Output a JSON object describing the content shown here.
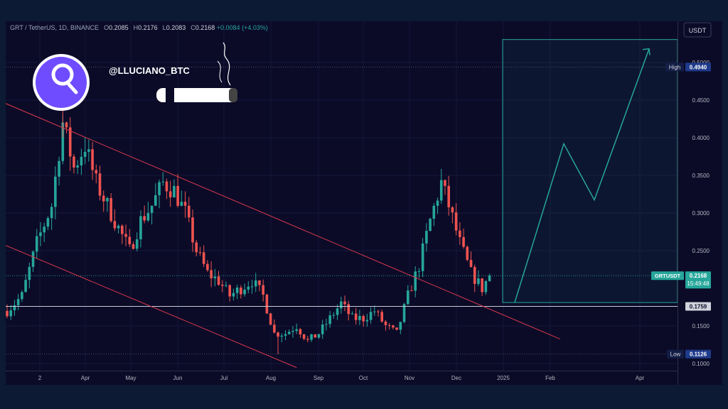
{
  "header": {
    "symbol": "GRT / TetherUS, 1D, BINANCE",
    "o_label": "O",
    "o": "0.2085",
    "h_label": "H",
    "h": "0.2176",
    "l_label": "L",
    "l": "0.2083",
    "c_label": "C",
    "c": "0.2168",
    "change": "+0.0084 (+4.03%)"
  },
  "watermark": {
    "handle": "@LLUCIANO_BTC",
    "logo_icon": "the-graph-logo-icon",
    "cigar_icon": "cigar-icon"
  },
  "currency_badge": "USDT",
  "colors": {
    "up": "#26a69a",
    "down": "#ef5350",
    "channel": "#d9384a",
    "projection": "#26a69a",
    "background": "#0b0b28"
  },
  "chart_data": {
    "type": "candlestick",
    "x_ticks": [
      "2",
      "Apr",
      "May",
      "Jun",
      "Jul",
      "Aug",
      "Sep",
      "Oct",
      "Nov",
      "Dec",
      "2025",
      "Feb",
      "Apr"
    ],
    "y_ticks": [
      "0.5000",
      "0.4500",
      "0.4000",
      "0.3500",
      "0.3000",
      "0.2500",
      "0.1500",
      "0.1000"
    ],
    "ylim": [
      0.09,
      0.54
    ],
    "path": [
      [
        0,
        0.17
      ],
      [
        4,
        0.19
      ],
      [
        8,
        0.26
      ],
      [
        12,
        0.31
      ],
      [
        15,
        0.42
      ],
      [
        18,
        0.36
      ],
      [
        21,
        0.39
      ],
      [
        24,
        0.34
      ],
      [
        27,
        0.31
      ],
      [
        30,
        0.28
      ],
      [
        33,
        0.25
      ],
      [
        36,
        0.29
      ],
      [
        39,
        0.31
      ],
      [
        42,
        0.34
      ],
      [
        45,
        0.33
      ],
      [
        48,
        0.3
      ],
      [
        51,
        0.25
      ],
      [
        54,
        0.22
      ],
      [
        57,
        0.21
      ],
      [
        60,
        0.19
      ],
      [
        63,
        0.2
      ],
      [
        66,
        0.21
      ],
      [
        69,
        0.19
      ],
      [
        72,
        0.14
      ],
      [
        75,
        0.14
      ],
      [
        78,
        0.15
      ],
      [
        81,
        0.13
      ],
      [
        84,
        0.14
      ],
      [
        87,
        0.16
      ],
      [
        90,
        0.18
      ],
      [
        93,
        0.16
      ],
      [
        96,
        0.16
      ],
      [
        99,
        0.17
      ],
      [
        102,
        0.15
      ],
      [
        105,
        0.14
      ],
      [
        108,
        0.19
      ],
      [
        111,
        0.23
      ],
      [
        114,
        0.29
      ],
      [
        117,
        0.34
      ],
      [
        119,
        0.31
      ],
      [
        122,
        0.26
      ],
      [
        125,
        0.22
      ],
      [
        128,
        0.2
      ],
      [
        130,
        0.2168
      ]
    ],
    "wick_extremes": {
      "high": 0.494,
      "low": 0.1126
    },
    "channel_upper": [
      [
        0,
        0.4455
      ],
      [
        149,
        0.1326
      ]
    ],
    "channel_lower": [
      [
        0,
        0.257
      ],
      [
        78,
        0.0947
      ]
    ],
    "support_level": 0.1759,
    "projection_zone": {
      "top": 0.5305,
      "bottom": 0.1811
    },
    "projection_path": [
      0.1811,
      0.3921,
      0.3174,
      0.5182
    ],
    "labels": {
      "high": {
        "tag": "High",
        "value": "0.4940"
      },
      "low": {
        "tag": "Low",
        "value": "0.1126"
      },
      "current": {
        "tag": "GRTUSDT",
        "value": "0.2168",
        "countdown": "15:49:48"
      },
      "support": {
        "value": "0.1759"
      }
    }
  }
}
